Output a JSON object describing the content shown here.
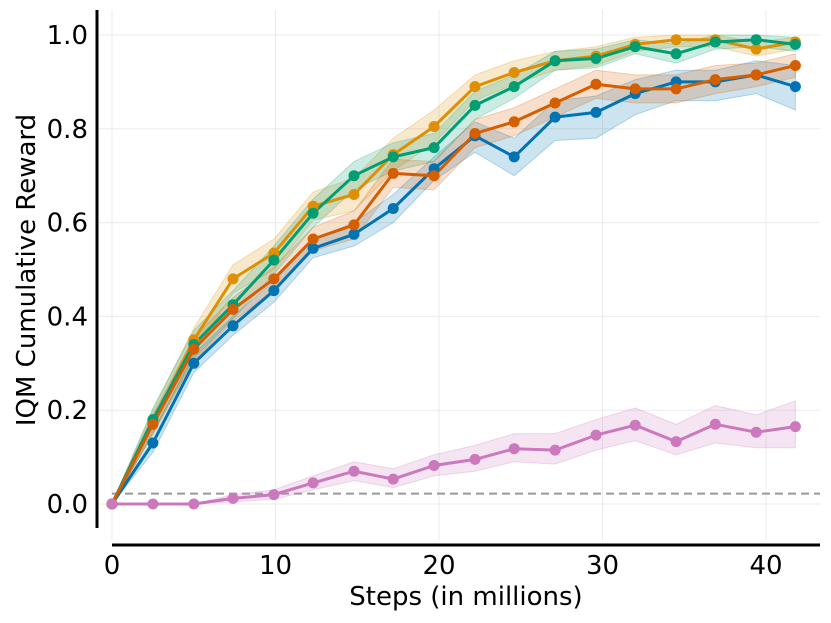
{
  "chart_data": {
    "type": "line",
    "title": "",
    "xlabel": "Steps (in millions)",
    "ylabel": "IQM Cumulative Reward",
    "xlim": [
      0,
      43
    ],
    "ylim": [
      -0.07,
      1.05
    ],
    "xticks": [
      0,
      10,
      20,
      30,
      40
    ],
    "xtick_labels": [
      "0",
      "10",
      "20",
      "30",
      "40"
    ],
    "yticks": [
      0.0,
      0.2,
      0.4,
      0.6,
      0.8,
      1.0
    ],
    "ytick_labels": [
      "0.0",
      "0.2",
      "0.4",
      "0.6",
      "0.8",
      "1.0"
    ],
    "grid": true,
    "x": [
      0,
      2.5,
      5,
      7.4,
      9.9,
      12.3,
      14.8,
      17.2,
      19.7,
      22.2,
      24.6,
      27.1,
      29.6,
      32,
      34.5,
      36.9,
      39.4,
      41.8
    ],
    "baseline": {
      "value": 0.022,
      "color": "#999999",
      "style": "dashed"
    },
    "series": [
      {
        "name": "blue",
        "color": "#0173b2",
        "values": [
          0.0,
          0.13,
          0.3,
          0.38,
          0.455,
          0.545,
          0.575,
          0.63,
          0.715,
          0.785,
          0.74,
          0.825,
          0.835,
          0.875,
          0.9,
          0.9,
          0.915,
          0.89
        ],
        "lower": [
          0.0,
          0.11,
          0.28,
          0.36,
          0.43,
          0.525,
          0.55,
          0.6,
          0.69,
          0.75,
          0.7,
          0.775,
          0.78,
          0.83,
          0.86,
          0.86,
          0.875,
          0.84
        ],
        "upper": [
          0.0,
          0.15,
          0.32,
          0.4,
          0.475,
          0.565,
          0.6,
          0.66,
          0.74,
          0.815,
          0.78,
          0.86,
          0.87,
          0.905,
          0.925,
          0.925,
          0.945,
          0.935
        ]
      },
      {
        "name": "orange",
        "color": "#de8f05",
        "values": [
          0.0,
          0.175,
          0.35,
          0.48,
          0.535,
          0.635,
          0.66,
          0.745,
          0.805,
          0.89,
          0.92,
          0.945,
          0.955,
          0.98,
          0.99,
          0.99,
          0.97,
          0.985
        ],
        "lower": [
          0.0,
          0.15,
          0.32,
          0.45,
          0.5,
          0.605,
          0.625,
          0.71,
          0.77,
          0.86,
          0.895,
          0.925,
          0.935,
          0.965,
          0.975,
          0.975,
          0.955,
          0.97
        ],
        "upper": [
          0.0,
          0.2,
          0.375,
          0.51,
          0.565,
          0.665,
          0.695,
          0.78,
          0.84,
          0.915,
          0.945,
          0.965,
          0.975,
          0.995,
          1.0,
          1.0,
          0.985,
          0.995
        ]
      },
      {
        "name": "green",
        "color": "#029e73",
        "values": [
          0.0,
          0.18,
          0.34,
          0.425,
          0.52,
          0.62,
          0.7,
          0.74,
          0.76,
          0.85,
          0.89,
          0.945,
          0.95,
          0.975,
          0.96,
          0.985,
          0.99,
          0.98
        ],
        "lower": [
          0.0,
          0.155,
          0.31,
          0.395,
          0.49,
          0.59,
          0.67,
          0.71,
          0.73,
          0.82,
          0.865,
          0.925,
          0.93,
          0.96,
          0.94,
          0.97,
          0.975,
          0.965
        ],
        "upper": [
          0.0,
          0.205,
          0.37,
          0.455,
          0.55,
          0.65,
          0.73,
          0.77,
          0.79,
          0.88,
          0.915,
          0.965,
          0.97,
          0.99,
          0.98,
          1.0,
          1.0,
          0.995
        ]
      },
      {
        "name": "red-orange",
        "color": "#d55e00",
        "values": [
          0.0,
          0.17,
          0.33,
          0.415,
          0.48,
          0.565,
          0.595,
          0.705,
          0.7,
          0.79,
          0.815,
          0.855,
          0.895,
          0.885,
          0.885,
          0.905,
          0.915,
          0.935
        ],
        "lower": [
          0.0,
          0.15,
          0.305,
          0.39,
          0.455,
          0.54,
          0.565,
          0.675,
          0.67,
          0.76,
          0.785,
          0.825,
          0.865,
          0.855,
          0.855,
          0.875,
          0.89,
          0.91
        ],
        "upper": [
          0.0,
          0.19,
          0.355,
          0.44,
          0.505,
          0.59,
          0.625,
          0.735,
          0.73,
          0.82,
          0.845,
          0.885,
          0.925,
          0.915,
          0.915,
          0.935,
          0.94,
          0.96
        ]
      },
      {
        "name": "pink",
        "color": "#cc78bc",
        "values": [
          0.0,
          0.0,
          0.0,
          0.012,
          0.02,
          0.045,
          0.07,
          0.053,
          0.082,
          0.095,
          0.118,
          0.115,
          0.147,
          0.168,
          0.133,
          0.17,
          0.153,
          0.165
        ],
        "lower": [
          0.0,
          0.0,
          0.0,
          0.005,
          0.01,
          0.03,
          0.05,
          0.035,
          0.06,
          0.07,
          0.09,
          0.085,
          0.115,
          0.135,
          0.105,
          0.13,
          0.12,
          0.12
        ],
        "upper": [
          0.0,
          0.0,
          0.0,
          0.02,
          0.03,
          0.06,
          0.09,
          0.075,
          0.105,
          0.125,
          0.15,
          0.15,
          0.18,
          0.205,
          0.17,
          0.21,
          0.19,
          0.22
        ]
      }
    ]
  }
}
